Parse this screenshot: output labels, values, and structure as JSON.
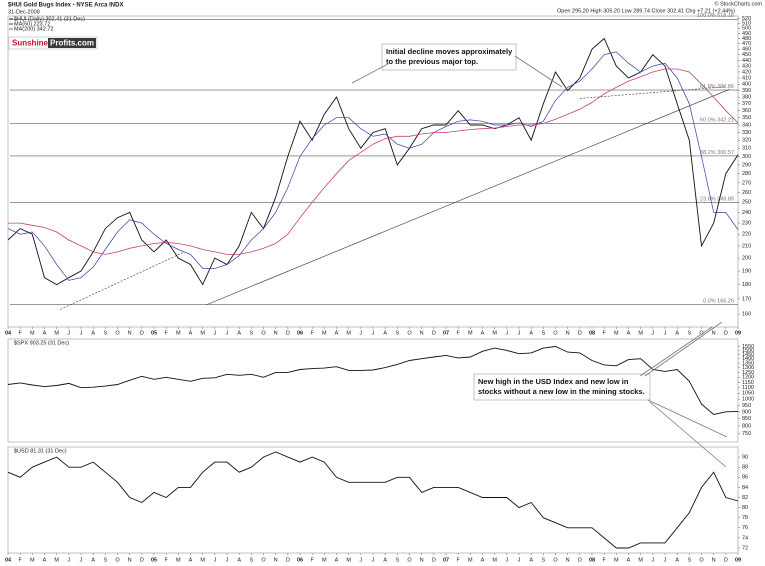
{
  "chart_data": [
    {
      "type": "line",
      "title": "$HUI Gold Bugs Index - NYSE Arca INDX",
      "date": "31-Dec-2008",
      "ohlc": "Open 295.20  High 305.20  Low 289.74  Close 302.41  Chg +7.21 (+2.44%)",
      "source": "© StockCharts.com",
      "logo": [
        "Sunshine",
        "Profits.com"
      ],
      "log": true,
      "x": [
        0,
        1,
        2,
        3,
        4,
        5,
        6,
        7,
        8,
        9,
        10,
        11,
        12,
        13,
        14,
        15,
        16,
        17,
        18,
        19,
        20,
        21,
        22,
        23,
        24,
        25,
        26,
        27,
        28,
        29,
        30,
        31,
        32,
        33,
        34,
        35,
        36,
        37,
        38,
        39,
        40,
        41,
        42,
        43,
        44,
        45,
        46,
        47,
        48,
        49,
        50,
        51,
        52,
        53,
        54,
        55,
        56,
        57,
        58,
        59,
        60
      ],
      "xlim": [
        0,
        60
      ],
      "xticks": [
        {
          "value": 0,
          "label": "04"
        },
        {
          "value": 1,
          "label": "F"
        },
        {
          "value": 2,
          "label": "M"
        },
        {
          "value": 3,
          "label": "A"
        },
        {
          "value": 4,
          "label": "M"
        },
        {
          "value": 5,
          "label": "J"
        },
        {
          "value": 6,
          "label": "J"
        },
        {
          "value": 7,
          "label": "A"
        },
        {
          "value": 8,
          "label": "S"
        },
        {
          "value": 9,
          "label": "O"
        },
        {
          "value": 10,
          "label": "N"
        },
        {
          "value": 11,
          "label": "D"
        },
        {
          "value": 12,
          "label": "05"
        },
        {
          "value": 13,
          "label": "F"
        },
        {
          "value": 14,
          "label": "M"
        },
        {
          "value": 15,
          "label": "A"
        },
        {
          "value": 16,
          "label": "M"
        },
        {
          "value": 17,
          "label": "J"
        },
        {
          "value": 18,
          "label": "J"
        },
        {
          "value": 19,
          "label": "A"
        },
        {
          "value": 20,
          "label": "S"
        },
        {
          "value": 21,
          "label": "O"
        },
        {
          "value": 22,
          "label": "N"
        },
        {
          "value": 23,
          "label": "D"
        },
        {
          "value": 24,
          "label": "06"
        },
        {
          "value": 25,
          "label": "F"
        },
        {
          "value": 26,
          "label": "M"
        },
        {
          "value": 27,
          "label": "A"
        },
        {
          "value": 28,
          "label": "M"
        },
        {
          "value": 29,
          "label": "J"
        },
        {
          "value": 30,
          "label": "J"
        },
        {
          "value": 31,
          "label": "A"
        },
        {
          "value": 32,
          "label": "S"
        },
        {
          "value": 33,
          "label": "O"
        },
        {
          "value": 34,
          "label": "N"
        },
        {
          "value": 35,
          "label": "D"
        },
        {
          "value": 36,
          "label": "07"
        },
        {
          "value": 37,
          "label": "F"
        },
        {
          "value": 38,
          "label": "M"
        },
        {
          "value": 39,
          "label": "A"
        },
        {
          "value": 40,
          "label": "M"
        },
        {
          "value": 41,
          "label": "J"
        },
        {
          "value": 42,
          "label": "J"
        },
        {
          "value": 43,
          "label": "A"
        },
        {
          "value": 44,
          "label": "S"
        },
        {
          "value": 45,
          "label": "O"
        },
        {
          "value": 46,
          "label": "N"
        },
        {
          "value": 47,
          "label": "D"
        },
        {
          "value": 48,
          "label": "08"
        },
        {
          "value": 49,
          "label": "F"
        },
        {
          "value": 50,
          "label": "M"
        },
        {
          "value": 51,
          "label": "A"
        },
        {
          "value": 52,
          "label": "M"
        },
        {
          "value": 53,
          "label": "J"
        },
        {
          "value": 54,
          "label": "J"
        },
        {
          "value": 55,
          "label": "A"
        },
        {
          "value": 56,
          "label": "S"
        },
        {
          "value": 57,
          "label": "O"
        },
        {
          "value": 58,
          "label": "N"
        },
        {
          "value": 59,
          "label": "D"
        },
        {
          "value": 60,
          "label": "09"
        }
      ],
      "ylim": [
        152,
        525
      ],
      "yticks": [
        160,
        170,
        180,
        190,
        200,
        210,
        220,
        230,
        240,
        250,
        260,
        270,
        280,
        290,
        300,
        310,
        320,
        330,
        340,
        350,
        360,
        370,
        380,
        390,
        400,
        410,
        420,
        430,
        440,
        450,
        460,
        470,
        480,
        490,
        500,
        510,
        520
      ],
      "series": [
        {
          "name": "$HUI (Daily) 302.41 (31 Dec)",
          "color": "#111111",
          "width": 0.9,
          "values": [
            215,
            225,
            220,
            185,
            180,
            185,
            190,
            205,
            225,
            235,
            240,
            215,
            205,
            215,
            200,
            195,
            180,
            200,
            195,
            210,
            240,
            225,
            255,
            300,
            345,
            320,
            355,
            380,
            335,
            310,
            330,
            335,
            290,
            310,
            335,
            340,
            340,
            360,
            340,
            340,
            335,
            340,
            350,
            320,
            370,
            420,
            390,
            410,
            460,
            480,
            430,
            410,
            420,
            450,
            430,
            370,
            320,
            210,
            230,
            280,
            302
          ]
        },
        {
          "name": "MA(50) 223.72",
          "color": "#3a3aa8",
          "width": 0.7,
          "values": [
            225,
            220,
            222,
            210,
            195,
            183,
            185,
            193,
            207,
            222,
            233,
            230,
            220,
            212,
            207,
            203,
            192,
            192,
            195,
            202,
            215,
            225,
            240,
            265,
            300,
            322,
            340,
            350,
            350,
            335,
            325,
            328,
            315,
            310,
            315,
            330,
            338,
            345,
            347,
            345,
            340,
            340,
            343,
            338,
            345,
            375,
            395,
            405,
            425,
            450,
            455,
            435,
            420,
            430,
            435,
            410,
            370,
            300,
            240,
            240,
            224
          ]
        },
        {
          "name": "MA(200) 342.72",
          "color": "#c8406e",
          "width": 0.8,
          "values": [
            230,
            230,
            228,
            226,
            222,
            215,
            210,
            205,
            203,
            205,
            208,
            210,
            212,
            213,
            212,
            210,
            207,
            205,
            203,
            203,
            205,
            208,
            212,
            220,
            235,
            250,
            265,
            280,
            295,
            305,
            315,
            322,
            325,
            325,
            328,
            330,
            330,
            332,
            334,
            335,
            336,
            338,
            340,
            340,
            342,
            348,
            355,
            362,
            372,
            385,
            395,
            405,
            412,
            420,
            425,
            425,
            420,
            400,
            380,
            360,
            343
          ]
        }
      ],
      "levels": [
        {
          "value": 518.16,
          "label": "100.0% 518.16"
        },
        {
          "value": 390.86,
          "label": "61.8% 390.86"
        },
        {
          "value": 342.21,
          "label": "50.0% 342.21"
        },
        {
          "value": 300.57,
          "label": "38.2% 300.57"
        },
        {
          "value": 249.85,
          "label": "23.6% 249.85"
        },
        {
          "value": 166.26,
          "label": "0.0% 166.26"
        }
      ],
      "trendlines": [
        {
          "x": [
            16.3,
            59.3
          ],
          "y": [
            166,
            392
          ],
          "dashed": false
        },
        {
          "x": [
            4.3,
            14.5
          ],
          "y": [
            163,
            205
          ],
          "dashed": true
        },
        {
          "x": [
            47,
            59
          ],
          "y": [
            378,
            396
          ],
          "dashed": true
        }
      ],
      "annotations": [
        {
          "lines": [
            "Initial decline moves approximately",
            "to the previous major top."
          ]
        }
      ]
    },
    {
      "type": "line",
      "log": true,
      "x": [
        0,
        1,
        2,
        3,
        4,
        5,
        6,
        7,
        8,
        9,
        10,
        11,
        12,
        13,
        14,
        15,
        16,
        17,
        18,
        19,
        20,
        21,
        22,
        23,
        24,
        25,
        26,
        27,
        28,
        29,
        30,
        31,
        32,
        33,
        34,
        35,
        36,
        37,
        38,
        39,
        40,
        41,
        42,
        43,
        44,
        45,
        46,
        47,
        48,
        49,
        50,
        51,
        52,
        53,
        54,
        55,
        56,
        57,
        58,
        59,
        60
      ],
      "xlim": [
        0,
        60
      ],
      "ylim": [
        700,
        1650
      ],
      "yticks": [
        750,
        800,
        850,
        900,
        950,
        1000,
        1050,
        1100,
        1150,
        1200,
        1250,
        1300,
        1350,
        1400,
        1450,
        1500,
        1550
      ],
      "series": [
        {
          "name": "$SPX 903.25 (31 Dec)",
          "color": "#111111",
          "width": 0.9,
          "values": [
            1130,
            1145,
            1125,
            1110,
            1120,
            1140,
            1100,
            1105,
            1115,
            1130,
            1170,
            1210,
            1180,
            1200,
            1180,
            1160,
            1190,
            1195,
            1230,
            1220,
            1230,
            1200,
            1250,
            1250,
            1280,
            1290,
            1295,
            1310,
            1270,
            1270,
            1275,
            1300,
            1335,
            1380,
            1400,
            1420,
            1440,
            1410,
            1420,
            1490,
            1530,
            1500,
            1460,
            1470,
            1530,
            1550,
            1480,
            1470,
            1380,
            1330,
            1320,
            1390,
            1400,
            1280,
            1260,
            1280,
            1160,
            960,
            880,
            900,
            903
          ]
        }
      ],
      "annotations": [
        {
          "lines": [
            "New high in the USD Index and new low in",
            "stocks without a new low in the mining stocks."
          ]
        }
      ]
    },
    {
      "type": "line",
      "log": false,
      "x": [
        0,
        1,
        2,
        3,
        4,
        5,
        6,
        7,
        8,
        9,
        10,
        11,
        12,
        13,
        14,
        15,
        16,
        17,
        18,
        19,
        20,
        21,
        22,
        23,
        24,
        25,
        26,
        27,
        28,
        29,
        30,
        31,
        32,
        33,
        34,
        35,
        36,
        37,
        38,
        39,
        40,
        41,
        42,
        43,
        44,
        45,
        46,
        47,
        48,
        49,
        50,
        51,
        52,
        53,
        54,
        55,
        56,
        57,
        58,
        59,
        60
      ],
      "xlim": [
        0,
        60
      ],
      "xticks": [
        {
          "value": 0,
          "label": "04"
        },
        {
          "value": 1,
          "label": "F"
        },
        {
          "value": 2,
          "label": "M"
        },
        {
          "value": 3,
          "label": "A"
        },
        {
          "value": 4,
          "label": "M"
        },
        {
          "value": 5,
          "label": "J"
        },
        {
          "value": 6,
          "label": "J"
        },
        {
          "value": 7,
          "label": "A"
        },
        {
          "value": 8,
          "label": "S"
        },
        {
          "value": 9,
          "label": "O"
        },
        {
          "value": 10,
          "label": "N"
        },
        {
          "value": 11,
          "label": "D"
        },
        {
          "value": 12,
          "label": "05"
        },
        {
          "value": 13,
          "label": "F"
        },
        {
          "value": 14,
          "label": "M"
        },
        {
          "value": 15,
          "label": "A"
        },
        {
          "value": 16,
          "label": "M"
        },
        {
          "value": 17,
          "label": "J"
        },
        {
          "value": 18,
          "label": "J"
        },
        {
          "value": 19,
          "label": "A"
        },
        {
          "value": 20,
          "label": "S"
        },
        {
          "value": 21,
          "label": "O"
        },
        {
          "value": 22,
          "label": "N"
        },
        {
          "value": 23,
          "label": "D"
        },
        {
          "value": 24,
          "label": "06"
        },
        {
          "value": 25,
          "label": "F"
        },
        {
          "value": 26,
          "label": "M"
        },
        {
          "value": 27,
          "label": "A"
        },
        {
          "value": 28,
          "label": "M"
        },
        {
          "value": 29,
          "label": "J"
        },
        {
          "value": 30,
          "label": "J"
        },
        {
          "value": 31,
          "label": "A"
        },
        {
          "value": 32,
          "label": "S"
        },
        {
          "value": 33,
          "label": "O"
        },
        {
          "value": 34,
          "label": "N"
        },
        {
          "value": 35,
          "label": "D"
        },
        {
          "value": 36,
          "label": "07"
        },
        {
          "value": 37,
          "label": "F"
        },
        {
          "value": 38,
          "label": "M"
        },
        {
          "value": 39,
          "label": "A"
        },
        {
          "value": 40,
          "label": "M"
        },
        {
          "value": 41,
          "label": "J"
        },
        {
          "value": 42,
          "label": "J"
        },
        {
          "value": 43,
          "label": "A"
        },
        {
          "value": 44,
          "label": "S"
        },
        {
          "value": 45,
          "label": "O"
        },
        {
          "value": 46,
          "label": "N"
        },
        {
          "value": 47,
          "label": "D"
        },
        {
          "value": 48,
          "label": "08"
        },
        {
          "value": 49,
          "label": "F"
        },
        {
          "value": 50,
          "label": "M"
        },
        {
          "value": 51,
          "label": "A"
        },
        {
          "value": 52,
          "label": "M"
        },
        {
          "value": 53,
          "label": "J"
        },
        {
          "value": 54,
          "label": "J"
        },
        {
          "value": 55,
          "label": "A"
        },
        {
          "value": 56,
          "label": "S"
        },
        {
          "value": 57,
          "label": "O"
        },
        {
          "value": 58,
          "label": "N"
        },
        {
          "value": 59,
          "label": "D"
        },
        {
          "value": 60,
          "label": "09"
        }
      ],
      "ylim": [
        71,
        92
      ],
      "yticks": [
        72,
        74,
        76,
        78,
        80,
        82,
        84,
        86,
        88,
        90
      ],
      "series": [
        {
          "name": "$USD 81.31 (31 Dec)",
          "color": "#111111",
          "width": 0.9,
          "values": [
            87,
            86,
            88,
            89,
            90,
            88,
            88,
            89,
            87,
            85,
            82,
            81,
            83,
            82,
            84,
            84,
            87,
            89,
            89,
            87,
            88,
            90,
            91,
            90,
            89,
            90,
            89,
            86,
            85,
            85,
            85,
            85,
            86,
            86,
            83,
            84,
            84,
            84,
            83,
            82,
            82,
            82,
            80,
            81,
            78,
            77,
            76,
            76,
            76,
            74,
            72,
            72,
            73,
            73,
            73,
            76,
            79,
            84,
            87,
            82,
            81.31
          ]
        }
      ]
    }
  ]
}
